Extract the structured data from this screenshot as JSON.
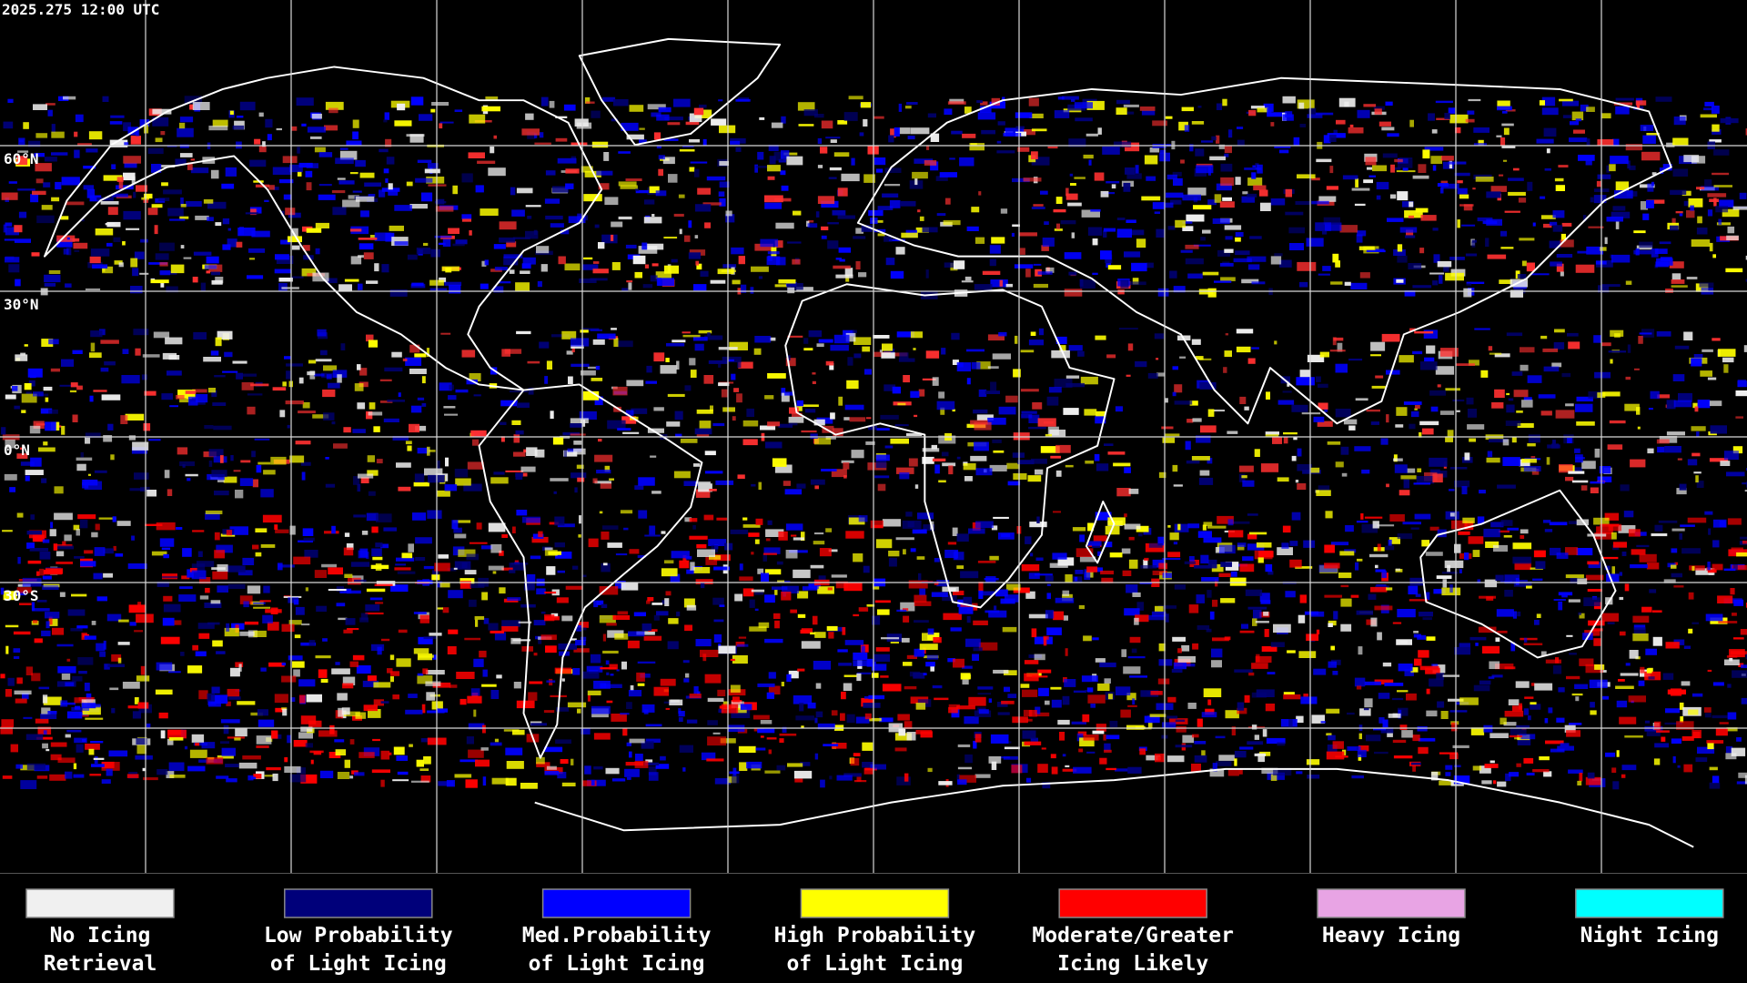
{
  "header": {
    "timestamp": "2025.275 12:00 UTC"
  },
  "map": {
    "latitude_labels": [
      "60°N",
      "30°N",
      "0°N",
      "30°S"
    ]
  },
  "legend": [
    {
      "label_lines": [
        "No Icing",
        "Retrieval"
      ],
      "color": "#f0f0f0"
    },
    {
      "label_lines": [
        "Low Probability",
        "of Light Icing"
      ],
      "color": "#00007a"
    },
    {
      "label_lines": [
        "Med.Probability",
        "of Light Icing"
      ],
      "color": "#0000ff"
    },
    {
      "label_lines": [
        "High Probability",
        "of Light Icing"
      ],
      "color": "#ffff00"
    },
    {
      "label_lines": [
        "Moderate/Greater",
        "Icing Likely"
      ],
      "color": "#ff0000"
    },
    {
      "label_lines": [
        "Heavy Icing"
      ],
      "color": "#e8a4e4"
    },
    {
      "label_lines": [
        "Night Icing"
      ],
      "color": "#00ffff"
    }
  ]
}
